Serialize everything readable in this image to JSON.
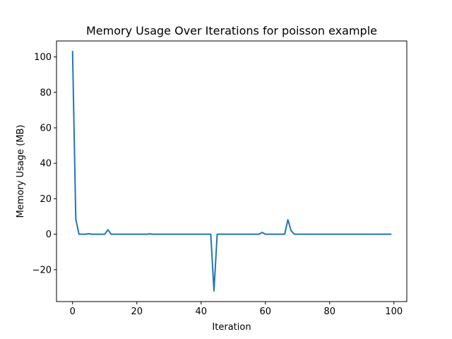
{
  "chart_data": {
    "type": "line",
    "title": "Memory Usage Over Iterations for poisson example",
    "xlabel": "Iteration",
    "ylabel": "Memory Usage (MB)",
    "xlim": [
      -5,
      104
    ],
    "ylim": [
      -38,
      109
    ],
    "xticks": [
      0,
      20,
      40,
      60,
      80,
      100
    ],
    "yticks": [
      -20,
      0,
      20,
      40,
      60,
      80,
      100
    ],
    "xtick_labels": [
      "0",
      "20",
      "40",
      "60",
      "80",
      "100"
    ],
    "ytick_labels": [
      "−20",
      "0",
      "20",
      "40",
      "60",
      "80",
      "100"
    ],
    "grid": false,
    "series": [
      {
        "color": "#1f77b4",
        "x": [
          0,
          1,
          2,
          3,
          4,
          5,
          6,
          7,
          8,
          9,
          10,
          11,
          12,
          13,
          14,
          15,
          16,
          17,
          18,
          19,
          20,
          21,
          22,
          23,
          24,
          25,
          26,
          27,
          28,
          29,
          30,
          31,
          32,
          33,
          34,
          35,
          36,
          37,
          38,
          39,
          40,
          41,
          42,
          43,
          44,
          45,
          46,
          47,
          48,
          49,
          50,
          51,
          52,
          53,
          54,
          55,
          56,
          57,
          58,
          59,
          60,
          61,
          62,
          63,
          64,
          65,
          66,
          67,
          68,
          69,
          70,
          71,
          72,
          73,
          74,
          75,
          76,
          77,
          78,
          79,
          80,
          81,
          82,
          83,
          84,
          85,
          86,
          87,
          88,
          89,
          90,
          91,
          92,
          93,
          94,
          95,
          96,
          97,
          98,
          99
        ],
        "y": [
          103,
          8.5,
          0,
          0,
          0,
          0.3,
          0,
          0,
          0,
          0,
          0,
          2.5,
          0,
          0,
          0,
          0,
          0,
          0,
          0,
          0,
          0,
          0,
          0,
          0,
          0.2,
          0,
          0,
          0,
          0,
          0,
          0,
          0,
          0,
          0,
          0,
          0,
          0,
          0,
          0,
          0,
          0,
          0,
          0,
          0,
          -32,
          0,
          0,
          0,
          0,
          0,
          0,
          0,
          0,
          0,
          0,
          0,
          0,
          0,
          0,
          1,
          0,
          0,
          0,
          0,
          0,
          0,
          0,
          8.2,
          2,
          0,
          0,
          0,
          0,
          0,
          0,
          0,
          0,
          0,
          0,
          0,
          0,
          0,
          0,
          0,
          0,
          0,
          0,
          0,
          0,
          0,
          0,
          0,
          0,
          0,
          0,
          0,
          0,
          0,
          0,
          0
        ]
      }
    ]
  }
}
